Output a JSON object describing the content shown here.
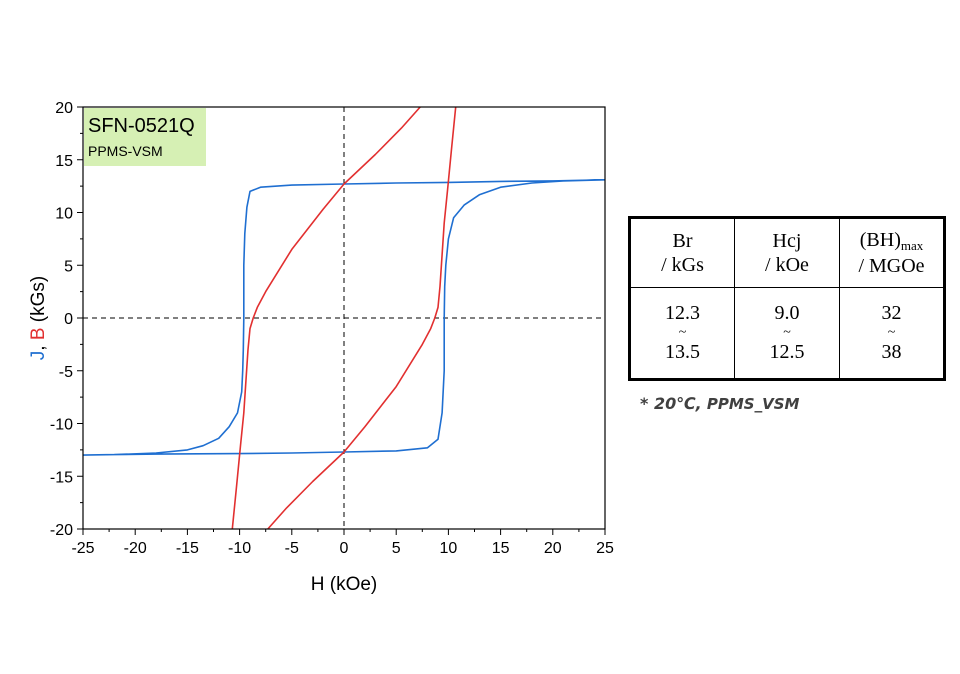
{
  "chart_data": {
    "type": "line",
    "sample_label": "SFN-0521Q",
    "instrument_label": "PPMS-VSM",
    "xlabel": "H (kOe)",
    "ylabel_parts": [
      {
        "text": "J",
        "color": "#1f6fd1"
      },
      {
        "text": ", ",
        "color": "#000000"
      },
      {
        "text": "B",
        "color": "#e23030"
      },
      {
        "text": " (kGs)",
        "color": "#000000"
      }
    ],
    "xlim": [
      -25,
      25
    ],
    "ylim": [
      -20,
      20
    ],
    "xticks": [
      "-25",
      "-20",
      "-15",
      "-10",
      "-5",
      "0",
      "5",
      "10",
      "15",
      "20",
      "25"
    ],
    "yticks": [
      "-20",
      "-15",
      "-10",
      "-5",
      "0",
      "5",
      "10",
      "15",
      "20"
    ],
    "zero_lines": "dashed",
    "series": [
      {
        "id": "J",
        "color": "#1f6fd1",
        "points": [
          [
            25,
            13.1
          ],
          [
            20,
            13.0
          ],
          [
            15,
            12.95
          ],
          [
            10,
            12.85
          ],
          [
            5,
            12.8
          ],
          [
            0,
            12.7
          ],
          [
            -5,
            12.6
          ],
          [
            -8,
            12.4
          ],
          [
            -9,
            12.0
          ],
          [
            -9.3,
            10.5
          ],
          [
            -9.5,
            8
          ],
          [
            -9.6,
            5
          ],
          [
            -9.6,
            0
          ],
          [
            -9.65,
            -3
          ],
          [
            -9.7,
            -5
          ],
          [
            -9.8,
            -7
          ],
          [
            -10.2,
            -9
          ],
          [
            -11,
            -10.3
          ],
          [
            -12,
            -11.4
          ],
          [
            -13.5,
            -12.1
          ],
          [
            -15,
            -12.5
          ],
          [
            -18,
            -12.8
          ],
          [
            -22,
            -12.95
          ],
          [
            -25,
            -13.0
          ],
          [
            -22,
            -12.95
          ],
          [
            -18,
            -12.9
          ],
          [
            -10,
            -12.85
          ],
          [
            -5,
            -12.8
          ],
          [
            0,
            -12.7
          ],
          [
            5,
            -12.6
          ],
          [
            8,
            -12.3
          ],
          [
            9,
            -11.5
          ],
          [
            9.4,
            -9
          ],
          [
            9.6,
            -5
          ],
          [
            9.6,
            0
          ],
          [
            9.65,
            3
          ],
          [
            9.75,
            5
          ],
          [
            10,
            7.5
          ],
          [
            10.5,
            9.5
          ],
          [
            11.5,
            10.7
          ],
          [
            13,
            11.7
          ],
          [
            15,
            12.4
          ],
          [
            18,
            12.8
          ],
          [
            21,
            13.0
          ],
          [
            25,
            13.1
          ]
        ]
      },
      {
        "id": "B",
        "color": "#e23030",
        "points": [
          [
            10.7,
            20
          ],
          [
            10.3,
            16
          ],
          [
            9.9,
            12
          ],
          [
            9.6,
            9
          ],
          [
            9.4,
            6
          ],
          [
            9.2,
            3
          ],
          [
            9,
            1
          ],
          [
            8.7,
            0
          ],
          [
            8.3,
            -1
          ],
          [
            7.5,
            -2.5
          ],
          [
            5,
            -6.5
          ],
          [
            2,
            -10.3
          ],
          [
            0,
            -12.7
          ],
          [
            -3,
            -15.5
          ],
          [
            -5.5,
            -18
          ],
          [
            -7.3,
            -20
          ]
        ]
      },
      {
        "id": "B-lower",
        "color": "#e23030",
        "points": [
          [
            -10.7,
            -20
          ],
          [
            -10.3,
            -16
          ],
          [
            -9.9,
            -12
          ],
          [
            -9.6,
            -9
          ],
          [
            -9.4,
            -6
          ],
          [
            -9.2,
            -3
          ],
          [
            -9,
            -1
          ],
          [
            -8.7,
            0
          ],
          [
            -8.3,
            1
          ],
          [
            -7.5,
            2.5
          ],
          [
            -5,
            6.5
          ],
          [
            -2,
            10.3
          ],
          [
            0,
            12.7
          ],
          [
            3,
            15.5
          ],
          [
            5.5,
            18
          ],
          [
            7.3,
            20
          ]
        ]
      }
    ]
  },
  "table": {
    "headers": [
      {
        "main": "Br",
        "sub": "",
        "unit": "/ kGs"
      },
      {
        "main": "Hcj",
        "sub": "",
        "unit": "/ kOe"
      },
      {
        "main": "(BH)",
        "sub": "max",
        "unit": "/ MGOe"
      }
    ],
    "rows": [
      {
        "min": "12.3",
        "sep": "~",
        "max": "13.5"
      },
      {
        "min": "9.0",
        "sep": "~",
        "max": "12.5"
      },
      {
        "min": "32",
        "sep": "~",
        "max": "38"
      }
    ]
  },
  "note": {
    "prefix": "* 20℃,",
    "rest": " PPMS_VSM"
  }
}
